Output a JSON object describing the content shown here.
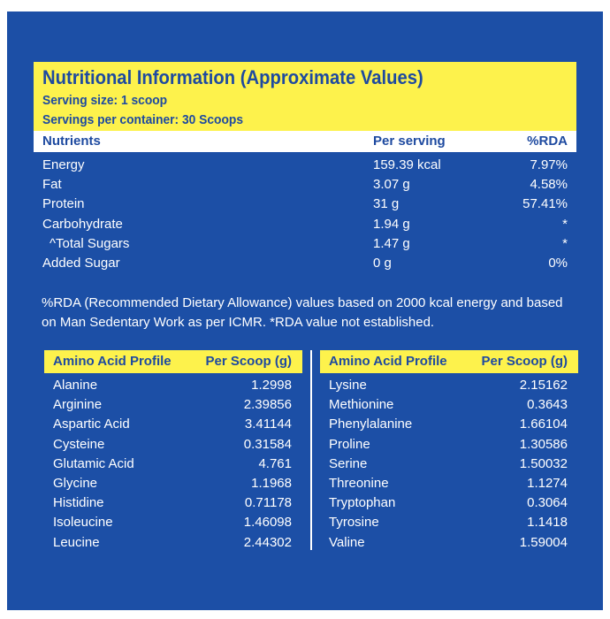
{
  "header": {
    "title": "Nutritional Information (Approximate Values)",
    "serving_size": "Serving size: 1 scoop",
    "servings_per_container": "Servings per container: 30 Scoops"
  },
  "nutrients_table": {
    "col_nutrients": "Nutrients",
    "col_per_serving": "Per serving",
    "col_rda": "%RDA",
    "rows": [
      {
        "name": "Energy",
        "per_serving": "159.39 kcal",
        "rda": "7.97%"
      },
      {
        "name": "Fat",
        "per_serving": "3.07 g",
        "rda": "4.58%"
      },
      {
        "name": "Protein",
        "per_serving": "31 g",
        "rda": "57.41%"
      },
      {
        "name": "Carbohydrate",
        "per_serving": "1.94 g",
        "rda": "*"
      },
      {
        "name": "^Total Sugars",
        "per_serving": "1.47 g",
        "rda": "*"
      },
      {
        "name": "Added Sugar",
        "per_serving": "0 g",
        "rda": "0%"
      }
    ]
  },
  "note": "%RDA (Recommended Dietary Allowance) values based on 2000 kcal energy and based on Man Sedentary Work as per ICMR. *RDA value not established.",
  "amino_left": {
    "col_name": "Amino Acid Profile",
    "col_value": "Per Scoop (g)",
    "rows": [
      {
        "name": "Alanine",
        "value": "1.2998"
      },
      {
        "name": "Arginine",
        "value": "2.39856"
      },
      {
        "name": "Aspartic Acid",
        "value": "3.41144"
      },
      {
        "name": "Cysteine",
        "value": "0.31584"
      },
      {
        "name": "Glutamic Acid",
        "value": "4.761"
      },
      {
        "name": "Glycine",
        "value": "1.1968"
      },
      {
        "name": "Histidine",
        "value": "0.71178"
      },
      {
        "name": "Isoleucine",
        "value": "1.46098"
      },
      {
        "name": "Leucine",
        "value": "2.44302"
      }
    ]
  },
  "amino_right": {
    "col_name": "Amino Acid Profile",
    "col_value": "Per Scoop (g)",
    "rows": [
      {
        "name": "Lysine",
        "value": "2.15162"
      },
      {
        "name": "Methionine",
        "value": "0.3643"
      },
      {
        "name": "Phenylalanine",
        "value": "1.66104"
      },
      {
        "name": "Proline",
        "value": "1.30586"
      },
      {
        "name": "Serine",
        "value": "1.50032"
      },
      {
        "name": "Threonine",
        "value": "1.1274"
      },
      {
        "name": "Tryptophan",
        "value": "0.3064"
      },
      {
        "name": "Tyrosine",
        "value": "1.1418"
      },
      {
        "name": "Valine",
        "value": "1.59004"
      }
    ]
  },
  "colors": {
    "panel_blue": "#1c4fa6",
    "header_yellow": "#fdf24c",
    "heading_text_blue": "#1e4aa0",
    "body_text": "#ffffff"
  }
}
